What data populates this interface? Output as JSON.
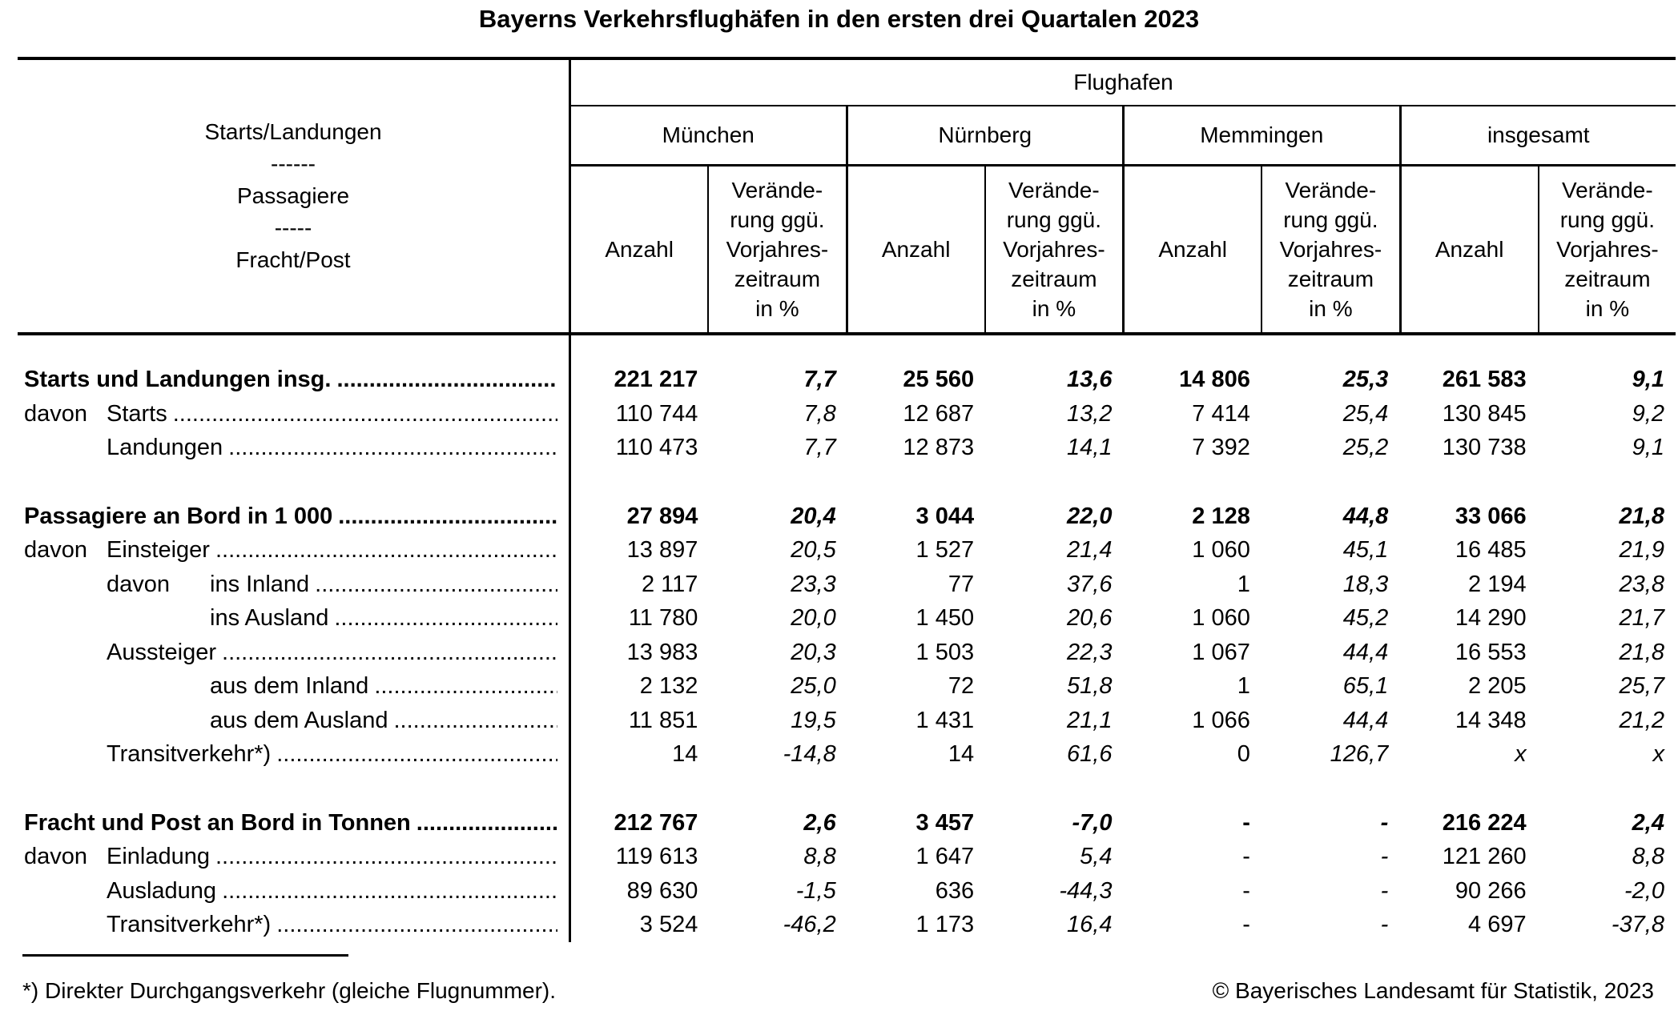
{
  "title": "Bayerns Verkehrsflughäfen in den ersten drei Quartalen 2023",
  "colors": {
    "text": "#000000",
    "background": "#ffffff"
  },
  "leader": "........................................................................................................................................................................................................",
  "header": {
    "stub_lines": [
      "Starts/Landungen",
      "------",
      "Passagiere",
      "-----",
      "Fracht/Post"
    ],
    "group_title": "Flughafen",
    "airports": [
      "München",
      "Nürnberg",
      "Memmingen",
      "insgesamt"
    ],
    "col_anzahl": "Anzahl",
    "col_change_lines": [
      "Verände-",
      "rung ggü.",
      "Vorjahres-",
      "zeitraum",
      "in %"
    ]
  },
  "rows": [
    {
      "level": 0,
      "davon": "",
      "davon2": "",
      "label": "Starts und Landungen insg.",
      "bold": true,
      "gap": false,
      "values": [
        "221 217",
        "7,7",
        "25 560",
        "13,6",
        "14 806",
        "25,3",
        "261 583",
        "9,1"
      ],
      "italic_values": []
    },
    {
      "level": 1,
      "davon": "davon",
      "davon2": "",
      "label": "Starts",
      "bold": false,
      "gap": false,
      "values": [
        "110 744",
        "7,8",
        "12 687",
        "13,2",
        "7 414",
        "25,4",
        "130 845",
        "9,2"
      ],
      "italic_values": []
    },
    {
      "level": 1,
      "davon": "",
      "davon2": "",
      "label": "Landungen",
      "bold": false,
      "gap": false,
      "values": [
        "110 473",
        "7,7",
        "12 873",
        "14,1",
        "7 392",
        "25,2",
        "130 738",
        "9,1"
      ],
      "italic_values": []
    },
    {
      "level": 0,
      "davon": "",
      "davon2": "",
      "label": "Passagiere an Bord in 1 000",
      "bold": true,
      "gap": true,
      "values": [
        "27 894",
        "20,4",
        "3 044",
        "22,0",
        "2 128",
        "44,8",
        "33 066",
        "21,8"
      ],
      "italic_values": []
    },
    {
      "level": 1,
      "davon": "davon",
      "davon2": "",
      "label": "Einsteiger",
      "bold": false,
      "gap": false,
      "values": [
        "13 897",
        "20,5",
        "1 527",
        "21,4",
        "1 060",
        "45,1",
        "16 485",
        "21,9"
      ],
      "italic_values": []
    },
    {
      "level": 2,
      "davon": "",
      "davon2": "davon",
      "label": "ins Inland",
      "bold": false,
      "gap": false,
      "values": [
        "2 117",
        "23,3",
        "77",
        "37,6",
        "1",
        "18,3",
        "2 194",
        "23,8"
      ],
      "italic_values": []
    },
    {
      "level": 2,
      "davon": "",
      "davon2": "",
      "label": "ins Ausland",
      "bold": false,
      "gap": false,
      "values": [
        "11 780",
        "20,0",
        "1 450",
        "20,6",
        "1 060",
        "45,2",
        "14 290",
        "21,7"
      ],
      "italic_values": []
    },
    {
      "level": 1,
      "davon": "",
      "davon2": "",
      "label": "Aussteiger",
      "bold": false,
      "gap": false,
      "values": [
        "13 983",
        "20,3",
        "1 503",
        "22,3",
        "1 067",
        "44,4",
        "16 553",
        "21,8"
      ],
      "italic_values": []
    },
    {
      "level": 2,
      "davon": "",
      "davon2": "",
      "label": "aus dem Inland",
      "bold": false,
      "gap": false,
      "values": [
        "2 132",
        "25,0",
        "72",
        "51,8",
        "1",
        "65,1",
        "2 205",
        "25,7"
      ],
      "italic_values": []
    },
    {
      "level": 2,
      "davon": "",
      "davon2": "",
      "label": "aus dem Ausland",
      "bold": false,
      "gap": false,
      "values": [
        "11 851",
        "19,5",
        "1 431",
        "21,1",
        "1 066",
        "44,4",
        "14 348",
        "21,2"
      ],
      "italic_values": []
    },
    {
      "level": 1,
      "davon": "",
      "davon2": "",
      "label": "Transitverkehr*)",
      "bold": false,
      "gap": false,
      "values": [
        "14",
        "-14,8",
        "14",
        "61,6",
        "0",
        "126,7",
        "x",
        "x"
      ],
      "italic_values": [
        6
      ]
    },
    {
      "level": 0,
      "davon": "",
      "davon2": "",
      "label": "Fracht und Post an Bord in Tonnen",
      "bold": true,
      "gap": true,
      "values": [
        "212 767",
        "2,6",
        "3 457",
        "-7,0",
        "-",
        "-",
        "216 224",
        "2,4"
      ],
      "italic_values": []
    },
    {
      "level": 1,
      "davon": "davon",
      "davon2": "",
      "label": "Einladung",
      "bold": false,
      "gap": false,
      "values": [
        "119 613",
        "8,8",
        "1 647",
        "5,4",
        "-",
        "-",
        "121 260",
        "8,8"
      ],
      "italic_values": []
    },
    {
      "level": 1,
      "davon": "",
      "davon2": "",
      "label": "Ausladung",
      "bold": false,
      "gap": false,
      "values": [
        "89 630",
        "-1,5",
        "636",
        "-44,3",
        "-",
        "-",
        "90 266",
        "-2,0"
      ],
      "italic_values": []
    },
    {
      "level": 1,
      "davon": "",
      "davon2": "",
      "label": "Transitverkehr*)",
      "bold": false,
      "gap": false,
      "values": [
        "3 524",
        "-46,2",
        "1 173",
        "16,4",
        "-",
        "-",
        "4 697",
        "-37,8"
      ],
      "italic_values": []
    }
  ],
  "footnote": "*) Direkter Durchgangsverkehr (gleiche Flugnummer).",
  "copyright": "© Bayerisches Landesamt für Statistik, 2023"
}
